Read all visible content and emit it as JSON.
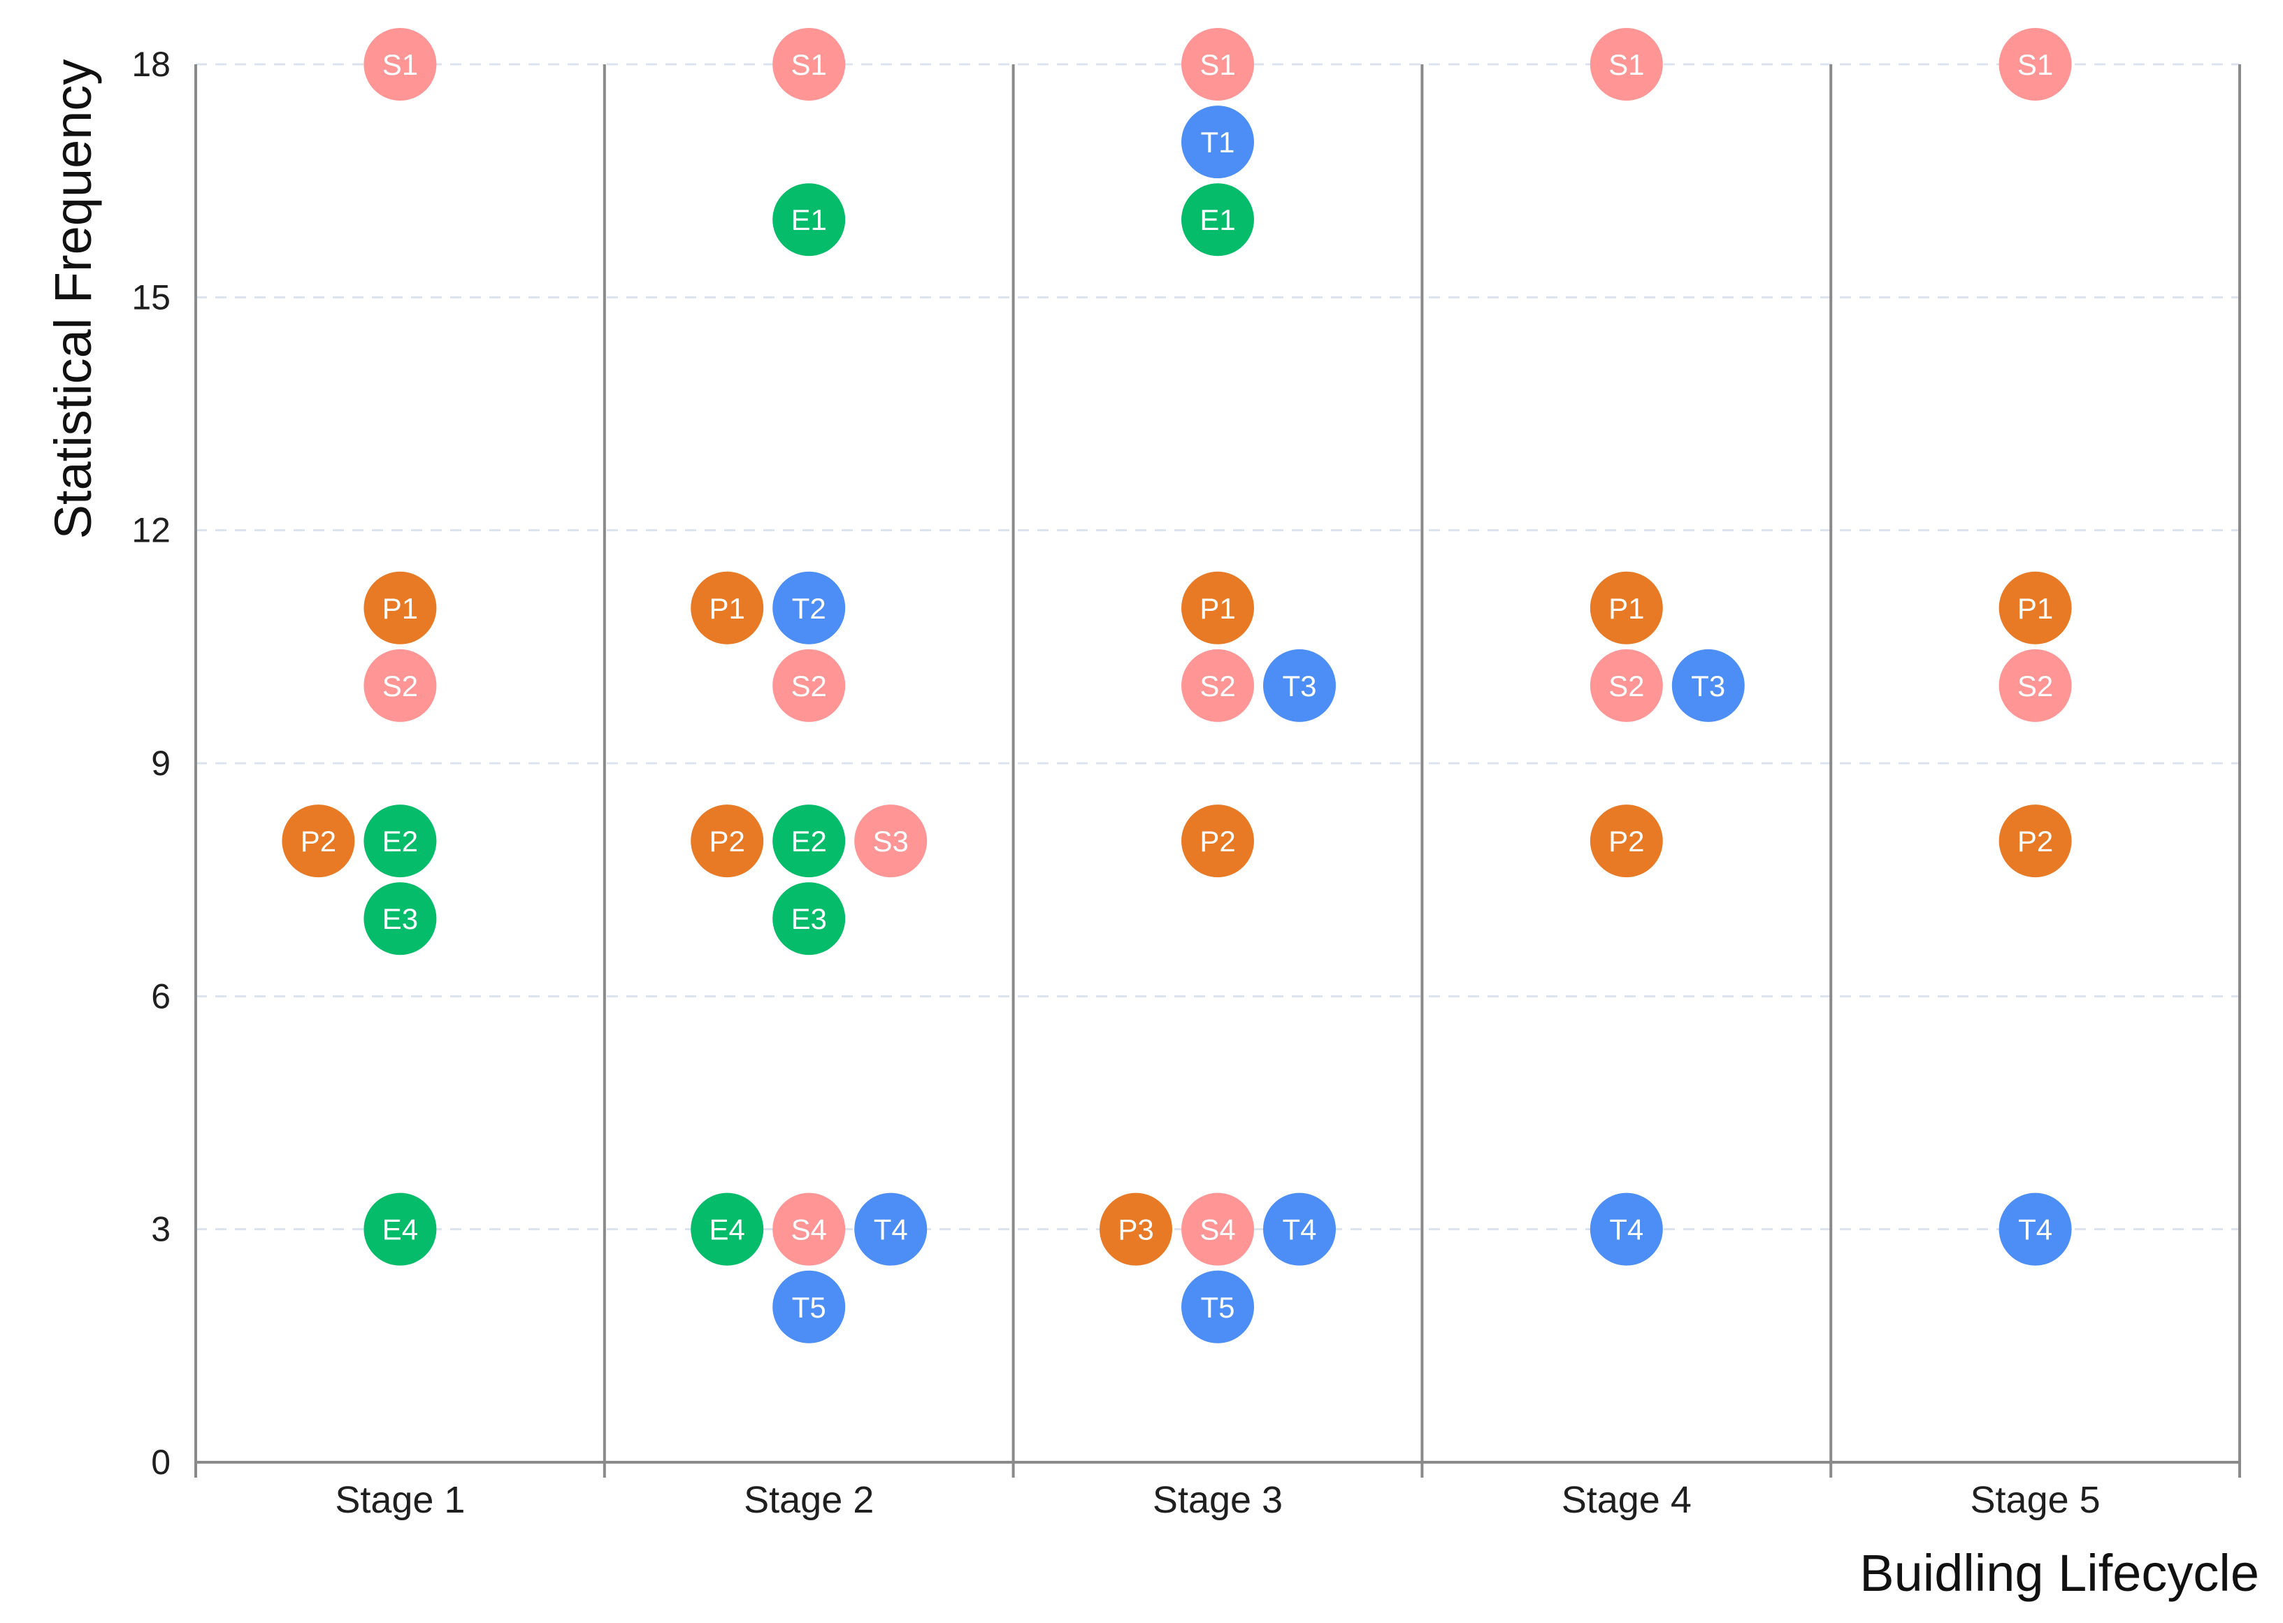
{
  "chart_data": {
    "type": "scatter",
    "xlabel": "Buidling Lifecycle",
    "ylabel": "Statistical Frequency",
    "categories": [
      "Stage 1",
      "Stage 2",
      "Stage 3",
      "Stage 4",
      "Stage 5"
    ],
    "ylim": [
      0,
      18
    ],
    "yticks": [
      0,
      3,
      6,
      9,
      12,
      15,
      18
    ],
    "grid": "horizontal-dashed",
    "colors": {
      "S": "#FF9595",
      "T": "#4C8EF5",
      "P": "#E97A25",
      "E": "#05BC6A"
    },
    "points": [
      {
        "stage": "Stage 1",
        "label": "S1",
        "y": 18,
        "offset": 0
      },
      {
        "stage": "Stage 1",
        "label": "P1",
        "y": 11,
        "offset": 0
      },
      {
        "stage": "Stage 1",
        "label": "S2",
        "y": 10,
        "offset": 0
      },
      {
        "stage": "Stage 1",
        "label": "P2",
        "y": 8,
        "offset": -1
      },
      {
        "stage": "Stage 1",
        "label": "E2",
        "y": 8,
        "offset": 0
      },
      {
        "stage": "Stage 1",
        "label": "E3",
        "y": 7,
        "offset": 0
      },
      {
        "stage": "Stage 1",
        "label": "E4",
        "y": 3,
        "offset": 0
      },
      {
        "stage": "Stage 2",
        "label": "S1",
        "y": 18,
        "offset": 0
      },
      {
        "stage": "Stage 2",
        "label": "E1",
        "y": 16,
        "offset": 0
      },
      {
        "stage": "Stage 2",
        "label": "P1",
        "y": 11,
        "offset": -1
      },
      {
        "stage": "Stage 2",
        "label": "T2",
        "y": 11,
        "offset": 0
      },
      {
        "stage": "Stage 2",
        "label": "S2",
        "y": 10,
        "offset": 0
      },
      {
        "stage": "Stage 2",
        "label": "P2",
        "y": 8,
        "offset": -1
      },
      {
        "stage": "Stage 2",
        "label": "E2",
        "y": 8,
        "offset": 0
      },
      {
        "stage": "Stage 2",
        "label": "S3",
        "y": 8,
        "offset": 1
      },
      {
        "stage": "Stage 2",
        "label": "E3",
        "y": 7,
        "offset": 0
      },
      {
        "stage": "Stage 2",
        "label": "E4",
        "y": 3,
        "offset": -1
      },
      {
        "stage": "Stage 2",
        "label": "S4",
        "y": 3,
        "offset": 0
      },
      {
        "stage": "Stage 2",
        "label": "T4",
        "y": 3,
        "offset": 1
      },
      {
        "stage": "Stage 2",
        "label": "T5",
        "y": 2,
        "offset": 0
      },
      {
        "stage": "Stage 3",
        "label": "S1",
        "y": 18,
        "offset": 0
      },
      {
        "stage": "Stage 3",
        "label": "T1",
        "y": 17,
        "offset": 0
      },
      {
        "stage": "Stage 3",
        "label": "E1",
        "y": 16,
        "offset": 0
      },
      {
        "stage": "Stage 3",
        "label": "P1",
        "y": 11,
        "offset": 0
      },
      {
        "stage": "Stage 3",
        "label": "S2",
        "y": 10,
        "offset": 0
      },
      {
        "stage": "Stage 3",
        "label": "T3",
        "y": 10,
        "offset": 1
      },
      {
        "stage": "Stage 3",
        "label": "P2",
        "y": 8,
        "offset": 0
      },
      {
        "stage": "Stage 3",
        "label": "P3",
        "y": 3,
        "offset": -1
      },
      {
        "stage": "Stage 3",
        "label": "S4",
        "y": 3,
        "offset": 0
      },
      {
        "stage": "Stage 3",
        "label": "T4",
        "y": 3,
        "offset": 1
      },
      {
        "stage": "Stage 3",
        "label": "T5",
        "y": 2,
        "offset": 0
      },
      {
        "stage": "Stage 4",
        "label": "S1",
        "y": 18,
        "offset": 0
      },
      {
        "stage": "Stage 4",
        "label": "P1",
        "y": 11,
        "offset": 0
      },
      {
        "stage": "Stage 4",
        "label": "S2",
        "y": 10,
        "offset": 0
      },
      {
        "stage": "Stage 4",
        "label": "T3",
        "y": 10,
        "offset": 1
      },
      {
        "stage": "Stage 4",
        "label": "P2",
        "y": 8,
        "offset": 0
      },
      {
        "stage": "Stage 4",
        "label": "T4",
        "y": 3,
        "offset": 0
      },
      {
        "stage": "Stage 5",
        "label": "S1",
        "y": 18,
        "offset": 0
      },
      {
        "stage": "Stage 5",
        "label": "P1",
        "y": 11,
        "offset": 0
      },
      {
        "stage": "Stage 5",
        "label": "S2",
        "y": 10,
        "offset": 0
      },
      {
        "stage": "Stage 5",
        "label": "P2",
        "y": 8,
        "offset": 0
      },
      {
        "stage": "Stage 5",
        "label": "T4",
        "y": 3,
        "offset": 0
      }
    ]
  }
}
